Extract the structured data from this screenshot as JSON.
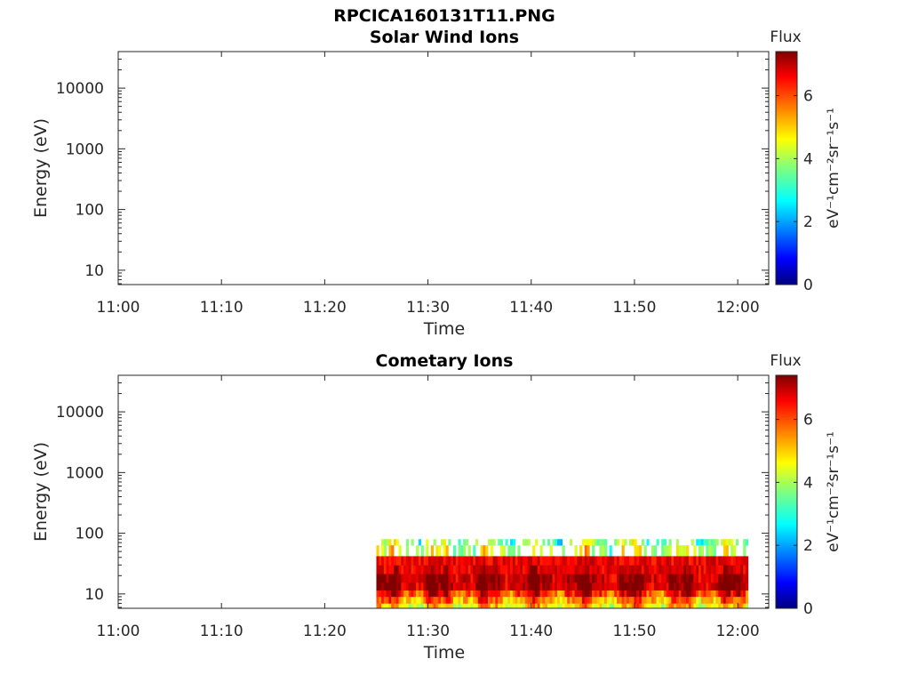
{
  "figure": {
    "title": "RPCICA160131T11.PNG"
  },
  "chart_data": [
    {
      "type": "heatmap",
      "title": "Solar Wind Ions",
      "xlabel": "Time",
      "ylabel": "Energy (eV)",
      "x_ticks": [
        "11:00",
        "11:10",
        "11:20",
        "11:30",
        "11:40",
        "11:50",
        "12:00"
      ],
      "xlim": [
        "11:00",
        "12:03"
      ],
      "y_ticks": [
        "10",
        "100",
        "1000",
        "10000"
      ],
      "yscale": "log",
      "ylim": [
        5.8,
        40000
      ],
      "colorbar": {
        "label": "Flux",
        "units": "eV⁻¹cm⁻²sr⁻¹s⁻¹",
        "ticks": [
          "0",
          "2",
          "4",
          "6"
        ],
        "range": [
          0,
          7.4
        ]
      },
      "data": []
    },
    {
      "type": "heatmap",
      "title": "Cometary Ions",
      "xlabel": "Time",
      "ylabel": "Energy (eV)",
      "x_ticks": [
        "11:00",
        "11:10",
        "11:20",
        "11:30",
        "11:40",
        "11:50",
        "12:00"
      ],
      "xlim": [
        "11:00",
        "12:03"
      ],
      "y_ticks": [
        "10",
        "100",
        "1000",
        "10000"
      ],
      "yscale": "log",
      "ylim": [
        5.8,
        40000
      ],
      "colorbar": {
        "label": "Flux",
        "units": "eV⁻¹cm⁻²sr⁻¹s⁻¹",
        "ticks": [
          "0",
          "2",
          "4",
          "6"
        ],
        "range": [
          0,
          7.4
        ]
      },
      "data_range": {
        "time_start": "11:25",
        "time_end": "12:01",
        "energy_min_eV": 5.8,
        "energy_max_eV": 80
      },
      "energy_band_profile": [
        {
          "energy_eV": 80,
          "flux": 3.8
        },
        {
          "energy_eV": 50,
          "flux": 4.2
        },
        {
          "energy_eV": 35,
          "flux": 5.0
        },
        {
          "energy_eV": 25,
          "flux": 6.2
        },
        {
          "energy_eV": 18,
          "flux": 7.0
        },
        {
          "energy_eV": 13,
          "flux": 7.0
        },
        {
          "energy_eV": 10,
          "flux": 6.3
        },
        {
          "energy_eV": 8,
          "flux": 5.5
        },
        {
          "energy_eV": 6,
          "flux": 4.8
        }
      ]
    }
  ]
}
